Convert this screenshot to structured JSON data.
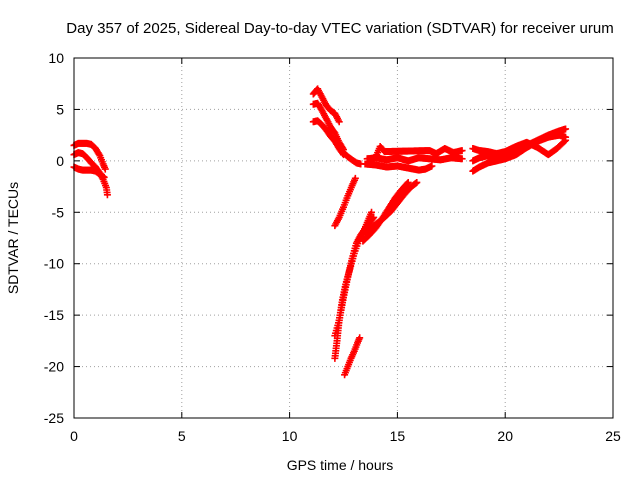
{
  "chart_data": {
    "type": "scatter",
    "title": "Day 357 of 2025, Sidereal Day-to-day VTEC variation (SDTVAR) for receiver urum",
    "xlabel": "GPS time / hours",
    "ylabel": "SDTVAR / TECUs",
    "xlim": [
      0,
      25
    ],
    "ylim": [
      -25,
      10
    ],
    "xticks": [
      0,
      5,
      10,
      15,
      20,
      25
    ],
    "yticks": [
      -25,
      -20,
      -15,
      -10,
      -5,
      0,
      5,
      10
    ],
    "grid": true,
    "marker": "plus",
    "color": "#ff0000",
    "series": [
      {
        "points": [
          [
            0.0,
            1.5
          ],
          [
            0.2,
            1.7
          ],
          [
            0.4,
            1.7
          ],
          [
            0.6,
            1.7
          ],
          [
            0.8,
            1.6
          ],
          [
            1.0,
            1.2
          ],
          [
            1.2,
            0.5
          ],
          [
            1.35,
            -0.3
          ],
          [
            1.45,
            -0.8
          ]
        ]
      },
      {
        "points": [
          [
            0.0,
            0.6
          ],
          [
            0.2,
            0.8
          ],
          [
            0.4,
            0.7
          ],
          [
            0.6,
            0.3
          ],
          [
            0.8,
            -0.2
          ],
          [
            1.0,
            -0.6
          ],
          [
            1.2,
            -1.2
          ],
          [
            1.35,
            -1.8
          ],
          [
            1.5,
            -2.6
          ],
          [
            1.55,
            -3.3
          ]
        ]
      },
      {
        "points": [
          [
            0.0,
            -0.6
          ],
          [
            0.2,
            -0.8
          ],
          [
            0.4,
            -0.9
          ],
          [
            0.6,
            -0.9
          ],
          [
            0.8,
            -0.9
          ],
          [
            1.0,
            -1.0
          ],
          [
            1.2,
            -1.3
          ],
          [
            1.4,
            -1.6
          ]
        ]
      },
      {
        "points": [
          [
            11.1,
            6.5
          ],
          [
            11.3,
            7.0
          ],
          [
            11.5,
            6.2
          ],
          [
            11.7,
            5.4
          ],
          [
            11.9,
            4.9
          ],
          [
            12.1,
            4.6
          ],
          [
            12.3,
            3.8
          ]
        ]
      },
      {
        "points": [
          [
            11.1,
            5.5
          ],
          [
            11.3,
            5.6
          ],
          [
            11.5,
            4.9
          ],
          [
            11.7,
            4.1
          ],
          [
            11.9,
            3.3
          ],
          [
            12.1,
            2.7
          ],
          [
            12.3,
            1.8
          ],
          [
            12.5,
            1.1
          ]
        ]
      },
      {
        "points": [
          [
            11.1,
            3.8
          ],
          [
            11.3,
            3.9
          ],
          [
            11.5,
            3.5
          ],
          [
            11.7,
            3.0
          ],
          [
            11.9,
            2.4
          ],
          [
            12.1,
            1.9
          ],
          [
            12.3,
            1.2
          ],
          [
            12.5,
            0.6
          ]
        ]
      },
      {
        "points": [
          [
            12.5,
            0.8
          ],
          [
            12.7,
            0.4
          ],
          [
            12.9,
            0.1
          ],
          [
            13.1,
            -0.2
          ],
          [
            13.3,
            -0.3
          ]
        ]
      },
      {
        "points": [
          [
            13.5,
            -0.3
          ],
          [
            14.0,
            -0.4
          ],
          [
            14.5,
            -0.6
          ],
          [
            15.0,
            -0.5
          ],
          [
            15.5,
            -0.7
          ],
          [
            16.0,
            -0.9
          ],
          [
            16.3,
            -0.8
          ],
          [
            16.6,
            -0.5
          ]
        ]
      },
      {
        "points": [
          [
            13.6,
            0.2
          ],
          [
            14.0,
            0.3
          ],
          [
            14.5,
            0.1
          ],
          [
            15.0,
            0.3
          ],
          [
            15.5,
            0.0
          ],
          [
            16.0,
            0.3
          ],
          [
            16.5,
            0.2
          ],
          [
            17.0,
            0.1
          ],
          [
            17.5,
            0.3
          ],
          [
            18.0,
            0.2
          ]
        ]
      },
      {
        "points": [
          [
            14.0,
            0.4
          ],
          [
            14.2,
            1.4
          ],
          [
            14.4,
            0.9
          ],
          [
            16.5,
            1.0
          ],
          [
            16.8,
            0.7
          ],
          [
            17.2,
            1.2
          ],
          [
            17.6,
            0.8
          ],
          [
            18.0,
            1.0
          ]
        ]
      },
      {
        "points": [
          [
            12.1,
            -6.3
          ],
          [
            12.3,
            -5.5
          ],
          [
            12.5,
            -4.5
          ],
          [
            12.7,
            -3.4
          ],
          [
            12.9,
            -2.4
          ],
          [
            13.05,
            -1.7
          ]
        ]
      },
      {
        "points": [
          [
            12.1,
            -19.2
          ],
          [
            12.2,
            -17.5
          ],
          [
            12.3,
            -15.5
          ],
          [
            12.45,
            -13.5
          ],
          [
            12.6,
            -12.0
          ],
          [
            12.8,
            -10.5
          ],
          [
            13.0,
            -9.0
          ],
          [
            13.2,
            -7.8
          ],
          [
            13.4,
            -7.0
          ],
          [
            13.6,
            -6.0
          ],
          [
            13.8,
            -5.0
          ]
        ]
      },
      {
        "points": [
          [
            12.1,
            -17.0
          ],
          [
            12.3,
            -15.5
          ],
          [
            12.5,
            -13.3
          ],
          [
            12.7,
            -11.3
          ],
          [
            12.9,
            -9.5
          ],
          [
            13.1,
            -8.0
          ],
          [
            13.3,
            -7.2
          ],
          [
            13.6,
            -6.3
          ],
          [
            13.9,
            -5.5
          ]
        ]
      },
      {
        "points": [
          [
            13.5,
            -7.0
          ],
          [
            13.8,
            -6.5
          ],
          [
            14.1,
            -6.0
          ],
          [
            14.4,
            -5.5
          ],
          [
            14.7,
            -4.9
          ],
          [
            15.0,
            -4.1
          ],
          [
            15.3,
            -3.3
          ],
          [
            15.6,
            -2.6
          ],
          [
            15.9,
            -2.1
          ]
        ]
      },
      {
        "points": [
          [
            13.4,
            -7.8
          ],
          [
            13.7,
            -7.2
          ],
          [
            14.0,
            -6.5
          ],
          [
            14.3,
            -5.6
          ],
          [
            14.6,
            -4.6
          ],
          [
            14.9,
            -3.6
          ],
          [
            15.2,
            -2.8
          ],
          [
            15.5,
            -2.1
          ]
        ]
      },
      {
        "points": [
          [
            12.55,
            -20.8
          ],
          [
            12.7,
            -20.0
          ],
          [
            12.85,
            -19.2
          ],
          [
            13.0,
            -18.5
          ],
          [
            13.15,
            -17.7
          ],
          [
            13.25,
            -17.2
          ]
        ]
      },
      {
        "points": [
          [
            18.5,
            0.0
          ],
          [
            18.8,
            0.3
          ],
          [
            19.2,
            0.5
          ],
          [
            19.6,
            0.3
          ],
          [
            20.0,
            0.4
          ],
          [
            20.5,
            0.9
          ],
          [
            21.0,
            1.5
          ],
          [
            21.5,
            2.0
          ],
          [
            22.0,
            2.5
          ],
          [
            22.5,
            2.9
          ],
          [
            22.8,
            3.1
          ]
        ]
      },
      {
        "points": [
          [
            18.5,
            -1.0
          ],
          [
            18.8,
            -0.6
          ],
          [
            19.2,
            -0.2
          ],
          [
            19.6,
            0.0
          ],
          [
            20.0,
            0.2
          ],
          [
            20.5,
            0.6
          ],
          [
            21.0,
            1.3
          ],
          [
            21.5,
            1.9
          ],
          [
            22.0,
            2.3
          ],
          [
            22.5,
            2.5
          ],
          [
            22.8,
            2.3
          ]
        ]
      },
      {
        "points": [
          [
            18.5,
            1.2
          ],
          [
            18.8,
            1.0
          ],
          [
            19.2,
            0.9
          ],
          [
            19.6,
            0.7
          ],
          [
            20.0,
            0.9
          ],
          [
            20.5,
            1.4
          ],
          [
            21.0,
            1.8
          ],
          [
            21.5,
            1.3
          ],
          [
            22.0,
            0.6
          ],
          [
            22.4,
            1.2
          ],
          [
            22.8,
            2.0
          ]
        ]
      }
    ]
  }
}
